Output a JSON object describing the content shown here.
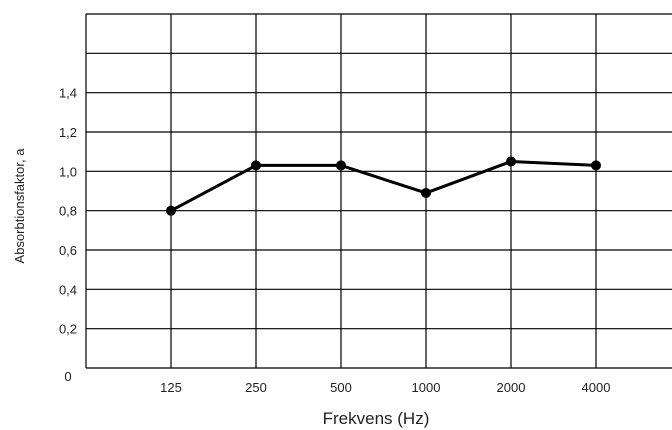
{
  "chart_data": {
    "type": "line",
    "xlabel": "Frekvens (Hz)",
    "ylabel": "Absorbtionsfaktor, a",
    "x_ticks": [
      "125",
      "250",
      "500",
      "1000",
      "2000",
      "4000"
    ],
    "y_ticks": [
      "0",
      "0,2",
      "0,4",
      "0,6",
      "0,8",
      "1,0",
      "1,2",
      "1,4"
    ],
    "ylim": [
      0,
      1.8
    ],
    "grid": true,
    "series": [
      {
        "x": [
          "125",
          "250",
          "500",
          "1000",
          "2000",
          "4000"
        ],
        "values": [
          0.8,
          1.03,
          1.03,
          0.89,
          1.05,
          1.03
        ]
      }
    ],
    "colors": {
      "line": "#000000",
      "grid": "#000000"
    }
  }
}
